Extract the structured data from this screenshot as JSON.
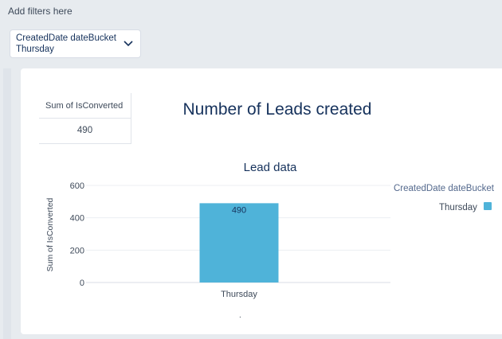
{
  "filters": {
    "add_label": "Add filters here",
    "items": [
      {
        "field": "CreatedDate dateBucket",
        "value": "Thursday"
      }
    ]
  },
  "metric": {
    "header": "Sum of IsConverted",
    "value": "490"
  },
  "widget_title": "Number of Leads created",
  "legend": {
    "title": "CreatedDate dateBucket",
    "items": [
      {
        "label": "Thursday",
        "color": "#4fb3d9"
      }
    ]
  },
  "chart_data": {
    "type": "bar",
    "title": "Lead data",
    "xlabel": "",
    "ylabel": "Sum of IsConverted",
    "categories": [
      "Thursday"
    ],
    "values": [
      490
    ],
    "data_labels": [
      "490"
    ],
    "y_ticks": [
      0,
      200,
      400,
      600
    ],
    "ylim": [
      0,
      600
    ],
    "grid": true,
    "legend_position": "right",
    "bar_color": "#4fb3d9"
  }
}
